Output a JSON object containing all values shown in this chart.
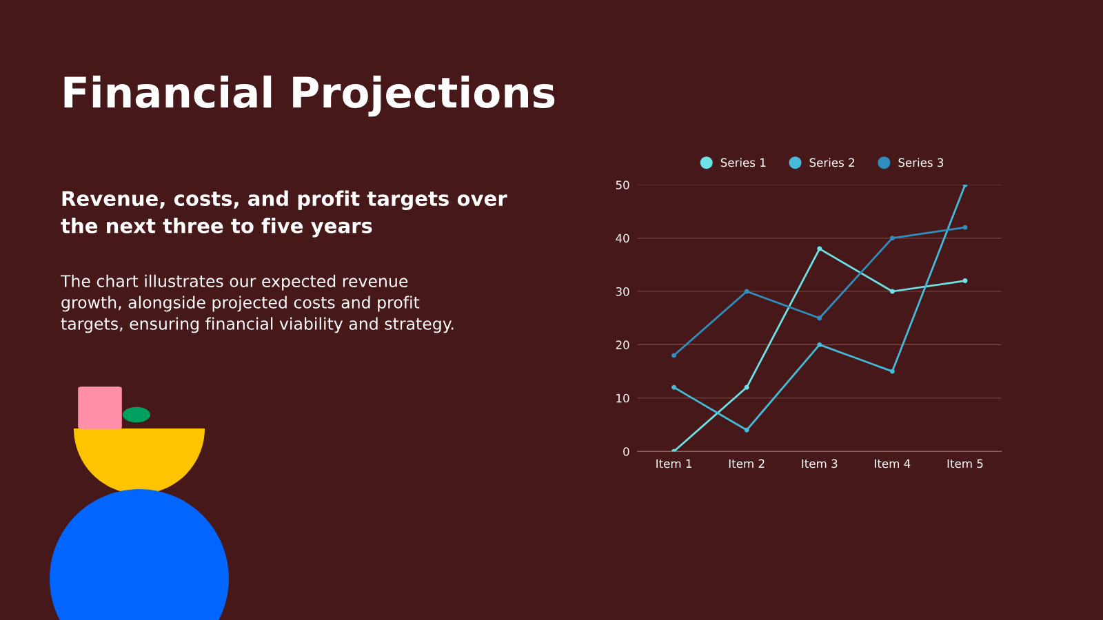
{
  "chart_data": {
    "type": "line",
    "title": "Financial Projections",
    "subtitle": "Revenue, costs, and profit targets over\nthe next three to five years",
    "annotations": [
      "The chart illustrates our expected revenue\ngrowth, alongside projected costs and profit\ntargets, ensuring financial viability and strategy."
    ],
    "categories": [
      "Item 1",
      "Item 2",
      "Item 3",
      "Item 4",
      "Item 5"
    ],
    "series": [
      {
        "name": "Series 1",
        "color": "#6ee3e6",
        "values": [
          0,
          12,
          38,
          30,
          32
        ]
      },
      {
        "name": "Series 2",
        "color": "#44bbd8",
        "values": [
          12,
          4,
          20,
          15,
          50
        ]
      },
      {
        "name": "Series 3",
        "color": "#2f8fbf",
        "values": [
          18,
          30,
          25,
          40,
          42
        ]
      }
    ],
    "ylim": [
      0,
      50
    ],
    "yticks": [
      0,
      10,
      20,
      30,
      40,
      50
    ],
    "grid": "y",
    "legend": "top",
    "marker": "circle",
    "line_style": "solid"
  }
}
